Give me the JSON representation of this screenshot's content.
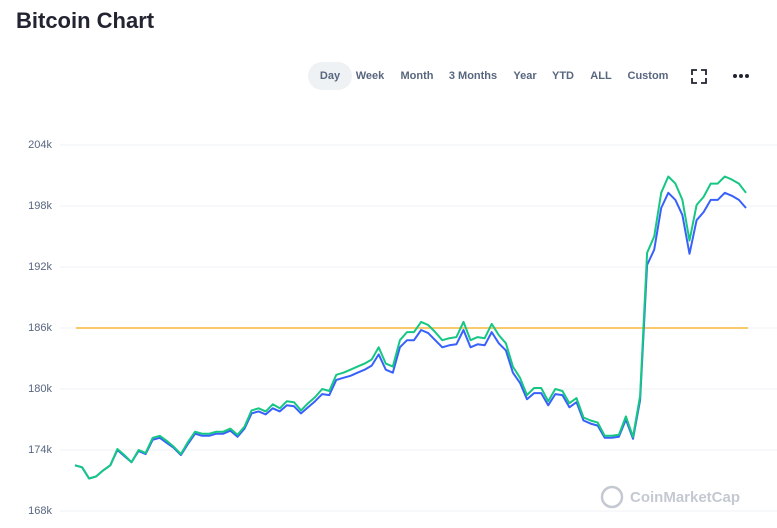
{
  "header": {
    "title": "Bitcoin Chart",
    "tabs": [
      "Day",
      "Week",
      "Month",
      "3 Months",
      "Year",
      "YTD",
      "ALL",
      "Custom"
    ],
    "active_tab": 0
  },
  "chart_data": {
    "type": "line",
    "ylim": [
      168000,
      204000
    ],
    "yticks": [
      {
        "value": 168000,
        "label": "168k"
      },
      {
        "value": 174000,
        "label": "174k"
      },
      {
        "value": 180000,
        "label": "180k"
      },
      {
        "value": 186000,
        "label": "186k"
      },
      {
        "value": 192000,
        "label": "192k"
      },
      {
        "value": 198000,
        "label": "198k"
      },
      {
        "value": 204000,
        "label": "204k"
      }
    ],
    "grid": true,
    "reference_value": 186000,
    "reference_color": "#f6b93b",
    "watermark": "CoinMarketCap",
    "series": [
      {
        "color": "#3861fb",
        "values": [
          172500,
          172300,
          171200,
          171400,
          172000,
          172500,
          174000,
          173400,
          172800,
          173900,
          173600,
          175000,
          175200,
          174700,
          174200,
          173500,
          174600,
          175600,
          175400,
          175400,
          175600,
          175600,
          175900,
          175300,
          176100,
          177600,
          177800,
          177500,
          178100,
          177800,
          178400,
          178300,
          177600,
          178200,
          178800,
          179500,
          179400,
          180900,
          181100,
          181300,
          181600,
          181900,
          182300,
          183400,
          181900,
          181600,
          184100,
          184800,
          184800,
          185800,
          185500,
          184800,
          184100,
          184300,
          184400,
          185800,
          184100,
          184400,
          184300,
          185600,
          184500,
          183800,
          181600,
          180600,
          179000,
          179600,
          179600,
          178400,
          179500,
          179400,
          178200,
          178700,
          176900,
          176600,
          176400,
          175200,
          175200,
          175300,
          177000,
          175100,
          178900,
          192200,
          193700,
          197800,
          199300,
          198600,
          197100,
          193300,
          196600,
          197400,
          198600,
          198600,
          199300,
          199000,
          198600,
          197800
        ]
      },
      {
        "color": "#16c784",
        "values": [
          172500,
          172300,
          171200,
          171400,
          172000,
          172500,
          174100,
          173500,
          172800,
          174000,
          173700,
          175200,
          175400,
          174900,
          174300,
          173600,
          174800,
          175800,
          175600,
          175600,
          175800,
          175800,
          176100,
          175500,
          176300,
          177900,
          178100,
          177800,
          178500,
          178100,
          178800,
          178700,
          177900,
          178600,
          179200,
          180000,
          179800,
          181400,
          181600,
          181900,
          182200,
          182500,
          182900,
          184100,
          182500,
          182200,
          184800,
          185600,
          185600,
          186600,
          186300,
          185600,
          184800,
          185000,
          185100,
          186600,
          184800,
          185100,
          185000,
          186400,
          185300,
          184500,
          182200,
          181100,
          179400,
          180100,
          180100,
          178800,
          180000,
          179800,
          178600,
          179100,
          177200,
          176900,
          176700,
          175400,
          175400,
          175500,
          177300,
          175300,
          179300,
          193400,
          195000,
          199300,
          200900,
          200200,
          198600,
          194600,
          198100,
          198900,
          200200,
          200200,
          200900,
          200600,
          200200,
          199300
        ]
      }
    ]
  }
}
